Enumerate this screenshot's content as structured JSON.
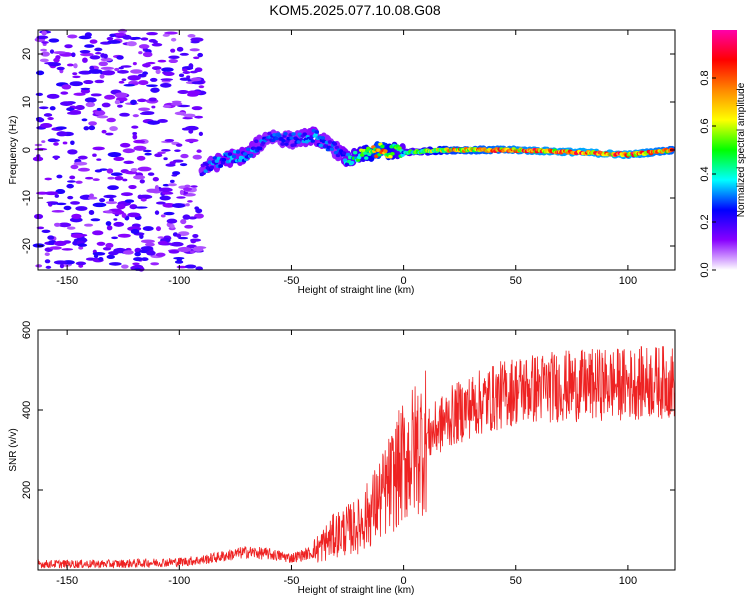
{
  "title": "KOM5.2025.077.10.08.G08",
  "chart_data": [
    {
      "type": "heatmap",
      "xlabel": "Height of straight line (km)",
      "ylabel": "Frequency (Hz)",
      "xlim": [
        -163,
        121
      ],
      "ylim": [
        -25,
        25
      ],
      "xticks": [
        -150,
        -100,
        -50,
        0,
        50,
        100
      ],
      "yticks": [
        -20,
        -10,
        0,
        10,
        20
      ],
      "colorbar": {
        "label": "Normalized spectral amplitude",
        "range": [
          0.0,
          1.0
        ],
        "ticks": [
          0.0,
          0.2,
          0.4,
          0.6,
          0.8
        ],
        "colormap": [
          "#ffffff",
          "#8800ff",
          "#0000ff",
          "#00ffff",
          "#00ff00",
          "#ffff00",
          "#ff8800",
          "#ff0000",
          "#ff00aa"
        ]
      },
      "ridge": [
        {
          "x": -90,
          "y": -4,
          "amp": 0.3
        },
        {
          "x": -80,
          "y": -2,
          "amp": 0.35
        },
        {
          "x": -70,
          "y": -1,
          "amp": 0.35
        },
        {
          "x": -60,
          "y": 3,
          "amp": 0.3
        },
        {
          "x": -50,
          "y": 2,
          "amp": 0.3
        },
        {
          "x": -40,
          "y": 3,
          "amp": 0.35
        },
        {
          "x": -30,
          "y": 0,
          "amp": 0.3
        },
        {
          "x": -25,
          "y": -2,
          "amp": 0.4
        },
        {
          "x": -10,
          "y": 0,
          "amp": 0.85
        },
        {
          "x": 0,
          "y": -0.5,
          "amp": 0.45
        },
        {
          "x": 20,
          "y": 0,
          "amp": 0.8
        },
        {
          "x": 50,
          "y": 0,
          "amp": 0.9
        },
        {
          "x": 80,
          "y": -0.5,
          "amp": 0.95
        },
        {
          "x": 100,
          "y": -1,
          "amp": 0.95
        },
        {
          "x": 120,
          "y": 0,
          "amp": 0.85
        }
      ],
      "noise_region": {
        "x_range": [
          -163,
          -90
        ],
        "y_range": [
          -25,
          25
        ],
        "amp": 0.15
      }
    },
    {
      "type": "line",
      "xlabel": "Height of straight line (km)",
      "ylabel": "SNR (v/v)",
      "xlim": [
        -163,
        121
      ],
      "ylim": [
        0,
        600
      ],
      "xticks": [
        -150,
        -100,
        -50,
        0,
        50,
        100
      ],
      "yticks": [
        200,
        400,
        600
      ],
      "series": [
        {
          "color": "#ee2222",
          "trend": {
            "x": [
              -163,
              -130,
              -100,
              -90,
              -80,
              -70,
              -60,
              -50,
              -40,
              -30,
              -20,
              -10,
              0,
              10,
              20,
              30,
              40,
              50,
              60,
              70,
              80,
              90,
              100,
              110,
              121
            ],
            "y": [
              15,
              15,
              20,
              25,
              35,
              45,
              40,
              30,
              45,
              90,
              110,
              180,
              270,
              330,
              380,
              410,
              430,
              450,
              455,
              460,
              460,
              465,
              465,
              470,
              470
            ]
          }
        }
      ]
    }
  ]
}
